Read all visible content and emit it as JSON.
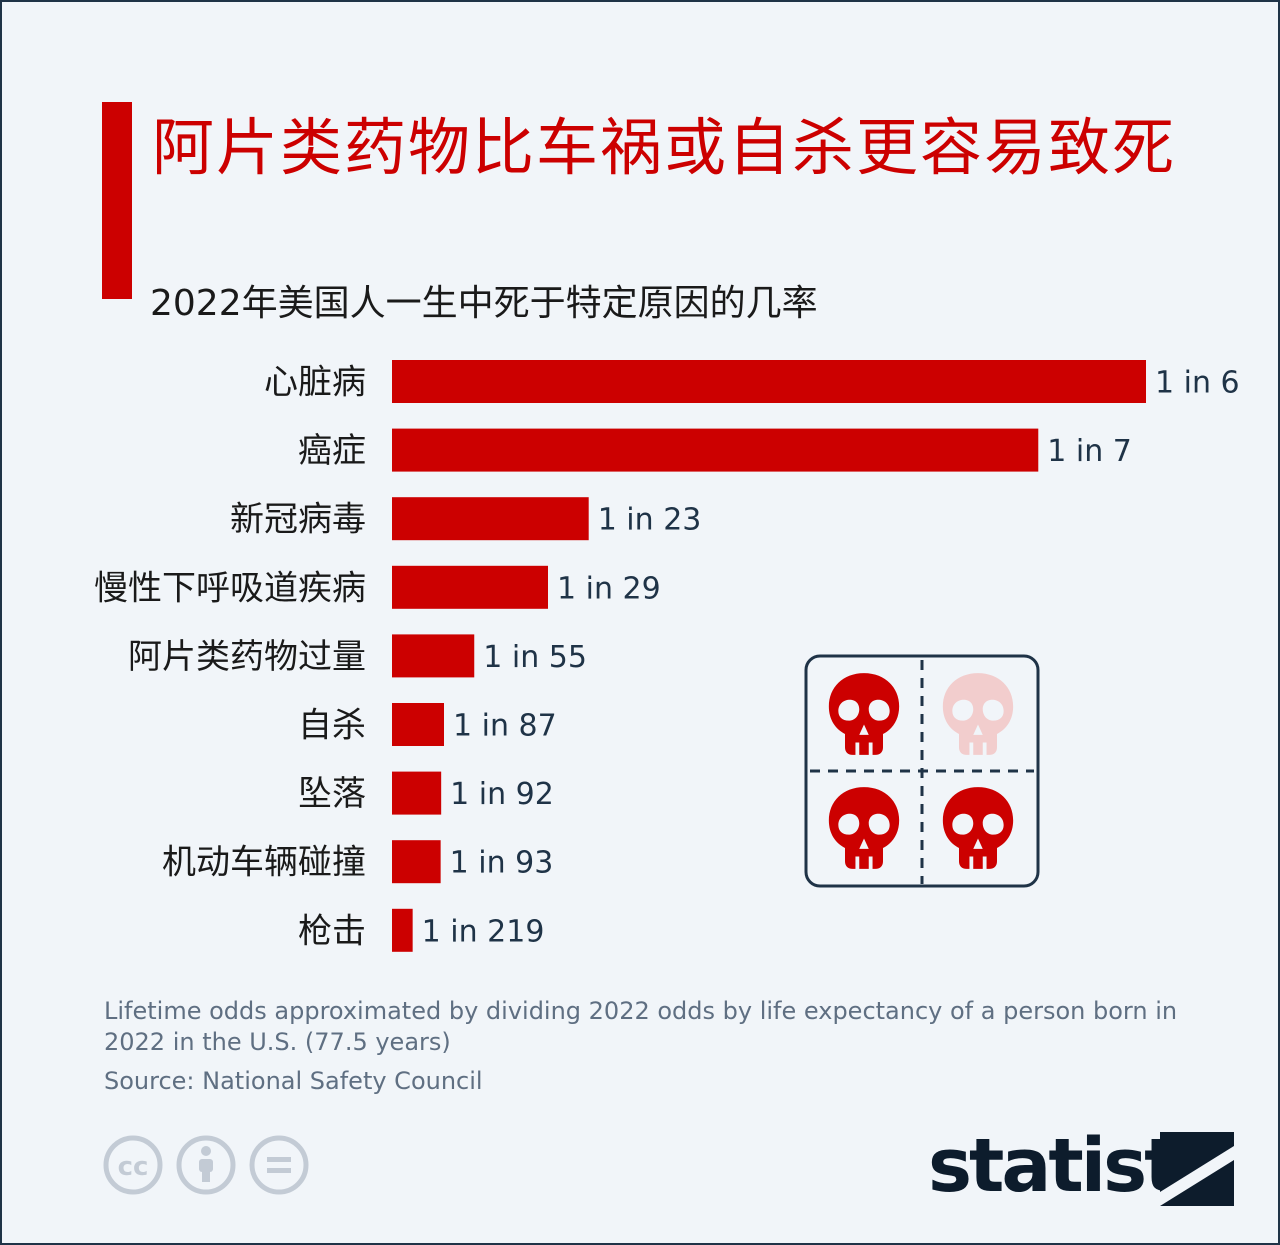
{
  "header": {
    "title": "阿片类药物比车祸或自杀更容易致死",
    "subtitle": "2022年美国人一生中死于特定原因的几率"
  },
  "chart_data": {
    "type": "bar",
    "orientation": "horizontal",
    "categories": [
      "心脏病",
      "癌症",
      "新冠病毒",
      "慢性下呼吸道疾病",
      "阿片类药物过量",
      "自杀",
      "坠落",
      "机动车辆碰撞",
      "枪击"
    ],
    "values": [
      6,
      7,
      23,
      29,
      55,
      87,
      92,
      93,
      219
    ],
    "value_labels": [
      "1 in 6",
      "1 in 7",
      "1 in 23",
      "1 in 29",
      "1 in 55",
      "1 in 87",
      "1 in 92",
      "1 in 93",
      "1 in 219"
    ],
    "title": "阿片类药物比车祸或自杀更容易致死",
    "subtitle": "2022年美国人一生中死于特定原因的几率",
    "xlabel": "",
    "ylabel": "",
    "grid": false,
    "bar_color": "#cc0000"
  },
  "illustration": {
    "icon": "skull-grid-icon",
    "faded_color": "#f2cdcd"
  },
  "footer": {
    "note": "Lifetime odds approximated by dividing 2022 odds by life expectancy of a person born in 2022 in the U.S. (77.5 years)",
    "source": "Source: National Safety Council",
    "brand": "statista",
    "license_icons": [
      "cc-icon",
      "attribution-icon",
      "no-derivatives-icon"
    ]
  },
  "colors": {
    "accent": "#cc0000",
    "background": "#f1f5f9",
    "text": "#1a1a1a",
    "muted": "#5f6f82",
    "brand": "#0d1c2c"
  }
}
